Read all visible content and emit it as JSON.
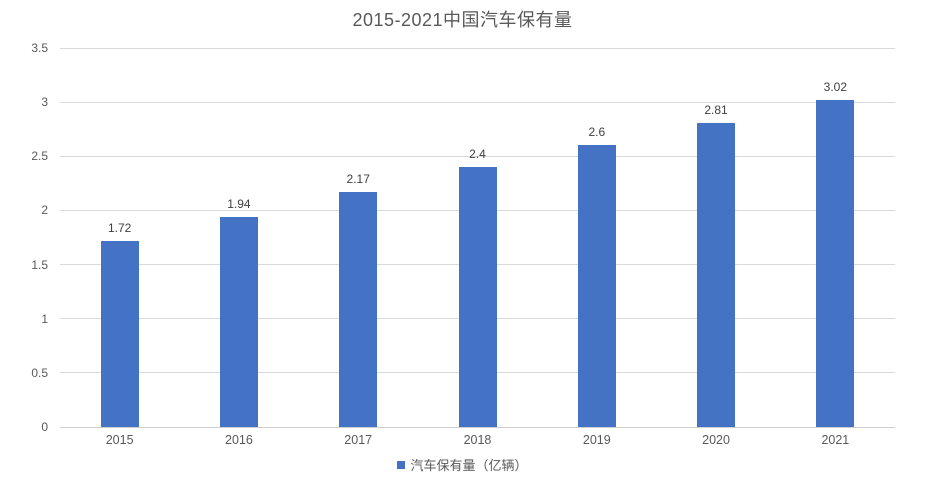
{
  "chart_data": {
    "type": "bar",
    "title": "2015-2021中国汽车保有量",
    "categories": [
      "2015",
      "2016",
      "2017",
      "2018",
      "2019",
      "2020",
      "2021"
    ],
    "series": [
      {
        "name": "汽车保有量（亿辆）",
        "values": [
          1.72,
          1.94,
          2.17,
          2.4,
          2.6,
          2.81,
          3.02
        ],
        "data_labels": [
          "1.72",
          "1.94",
          "2.17",
          "2.4",
          "2.6",
          "2.81",
          "3.02"
        ]
      }
    ],
    "xlabel": "",
    "ylabel": "",
    "ylim": [
      0,
      3.5
    ],
    "ytick_step": 0.5,
    "yticks": [
      "0",
      "0.5",
      "1",
      "1.5",
      "2",
      "2.5",
      "3",
      "3.5"
    ],
    "grid": true,
    "legend_position": "bottom",
    "legend_label": "汽车保有量（亿辆）",
    "colors": {
      "bar": "#4472c4",
      "title_text": "#595959",
      "axis_text": "#595959",
      "data_label_text": "#404040",
      "gridline": "#d9d9d9"
    }
  }
}
